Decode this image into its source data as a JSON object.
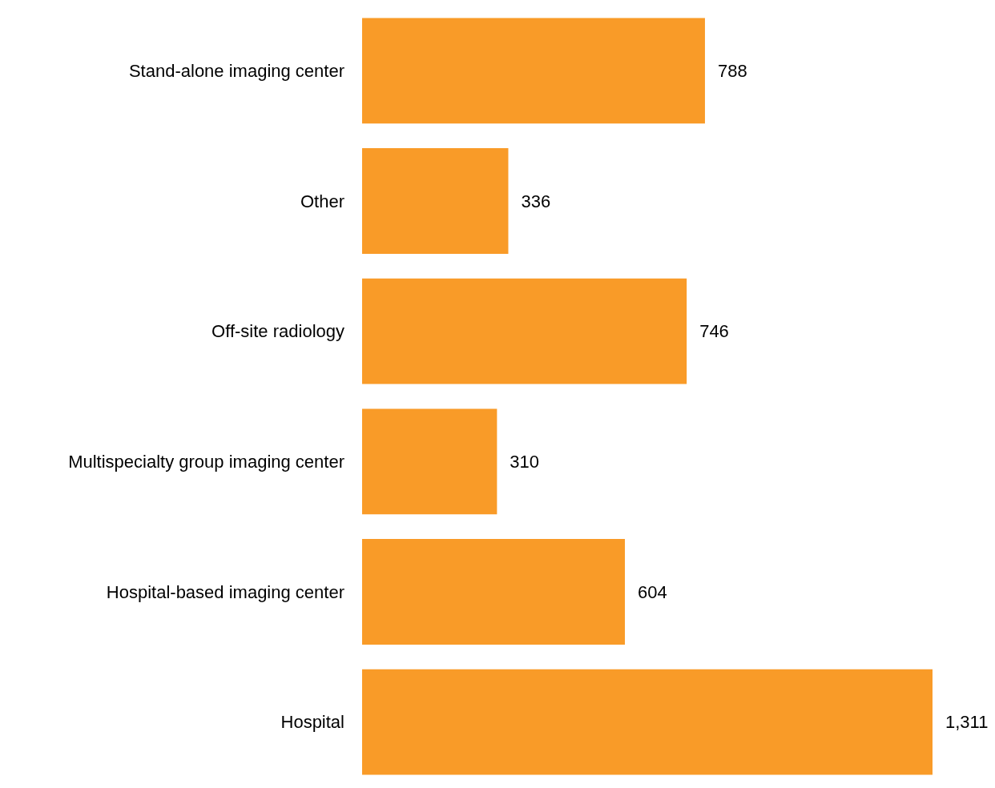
{
  "chart_data": {
    "type": "bar",
    "orientation": "horizontal",
    "categories": [
      "Stand-alone imaging center",
      "Other",
      "Off-site radiology",
      "Multispecialty group imaging center",
      "Hospital-based imaging center",
      "Hospital"
    ],
    "values": [
      788,
      336,
      746,
      310,
      604,
      1311
    ],
    "value_labels": [
      "788",
      "336",
      "746",
      "310",
      "604",
      "1,311"
    ],
    "color": "#f99b28"
  }
}
